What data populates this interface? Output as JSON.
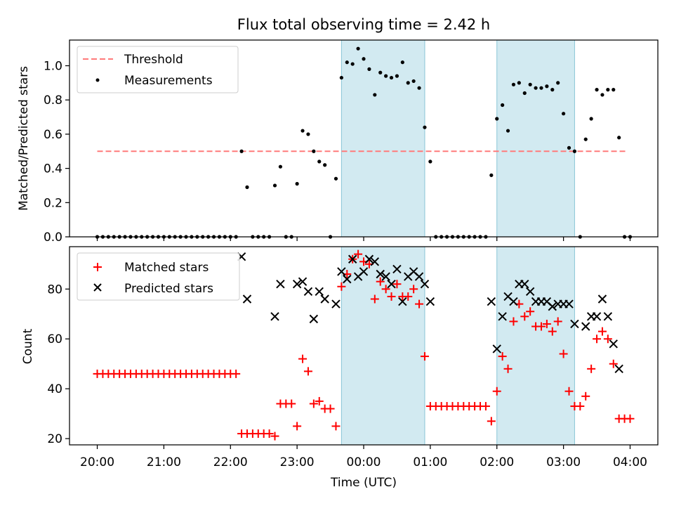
{
  "chart_data": [
    {
      "type": "scatter",
      "title": "Flux total observing time = 2.42 h",
      "xlabel": "",
      "ylabel": "Matched/Predicted stars",
      "xlim": [
        "19:35",
        "04:25"
      ],
      "ylim": [
        0,
        1.15
      ],
      "yticks": [
        "0.0",
        "0.2",
        "0.4",
        "0.6",
        "0.8",
        "1.0"
      ],
      "shaded_intervals": [
        [
          "23:40",
          "00:55"
        ],
        [
          "02:00",
          "03:10"
        ]
      ],
      "legend": {
        "placement": "top-left",
        "entries": [
          "Threshold",
          "Measurements"
        ]
      },
      "series": [
        {
          "name": "Threshold",
          "style": "dashed-line",
          "color": "#ff7a7a",
          "points": [
            [
              "20:00",
              0.5
            ],
            [
              "03:56",
              0.5
            ]
          ]
        },
        {
          "name": "Measurements",
          "style": "dot",
          "color": "#000000",
          "points": [
            [
              "20:00",
              0
            ],
            [
              "20:05",
              0
            ],
            [
              "20:10",
              0
            ],
            [
              "20:15",
              0
            ],
            [
              "20:20",
              0
            ],
            [
              "20:25",
              0
            ],
            [
              "20:30",
              0
            ],
            [
              "20:35",
              0
            ],
            [
              "20:40",
              0
            ],
            [
              "20:45",
              0
            ],
            [
              "20:50",
              0
            ],
            [
              "20:55",
              0
            ],
            [
              "21:00",
              0
            ],
            [
              "21:05",
              0
            ],
            [
              "21:10",
              0
            ],
            [
              "21:15",
              0
            ],
            [
              "21:20",
              0
            ],
            [
              "21:25",
              0
            ],
            [
              "21:30",
              0
            ],
            [
              "21:35",
              0
            ],
            [
              "21:40",
              0
            ],
            [
              "21:45",
              0
            ],
            [
              "21:50",
              0
            ],
            [
              "21:55",
              0
            ],
            [
              "22:00",
              0
            ],
            [
              "22:05",
              0
            ],
            [
              "22:10",
              0.5
            ],
            [
              "22:15",
              0.29
            ],
            [
              "22:20",
              0
            ],
            [
              "22:25",
              0
            ],
            [
              "22:30",
              0
            ],
            [
              "22:35",
              0
            ],
            [
              "22:40",
              0.3
            ],
            [
              "22:45",
              0.41
            ],
            [
              "22:50",
              0
            ],
            [
              "22:55",
              0
            ],
            [
              "23:00",
              0.31
            ],
            [
              "23:05",
              0.62
            ],
            [
              "23:10",
              0.6
            ],
            [
              "23:15",
              0.5
            ],
            [
              "23:20",
              0.44
            ],
            [
              "23:25",
              0.42
            ],
            [
              "23:30",
              0
            ],
            [
              "23:35",
              0.34
            ],
            [
              "23:40",
              0.93
            ],
            [
              "23:45",
              1.02
            ],
            [
              "23:50",
              1.01
            ],
            [
              "23:55",
              1.1
            ],
            [
              "00:00",
              1.04
            ],
            [
              "00:05",
              0.98
            ],
            [
              "00:10",
              0.83
            ],
            [
              "00:15",
              0.96
            ],
            [
              "00:20",
              0.94
            ],
            [
              "00:25",
              0.93
            ],
            [
              "00:30",
              0.94
            ],
            [
              "00:35",
              1.02
            ],
            [
              "00:40",
              0.9
            ],
            [
              "00:45",
              0.91
            ],
            [
              "00:50",
              0.87
            ],
            [
              "00:55",
              0.64
            ],
            [
              "01:00",
              0.44
            ],
            [
              "01:05",
              0
            ],
            [
              "01:10",
              0
            ],
            [
              "01:15",
              0
            ],
            [
              "01:20",
              0
            ],
            [
              "01:25",
              0
            ],
            [
              "01:30",
              0
            ],
            [
              "01:35",
              0
            ],
            [
              "01:40",
              0
            ],
            [
              "01:45",
              0
            ],
            [
              "01:50",
              0
            ],
            [
              "01:55",
              0.36
            ],
            [
              "02:00",
              0.69
            ],
            [
              "02:05",
              0.77
            ],
            [
              "02:10",
              0.62
            ],
            [
              "02:15",
              0.89
            ],
            [
              "02:20",
              0.9
            ],
            [
              "02:25",
              0.84
            ],
            [
              "02:30",
              0.89
            ],
            [
              "02:35",
              0.87
            ],
            [
              "02:40",
              0.87
            ],
            [
              "02:45",
              0.88
            ],
            [
              "02:50",
              0.86
            ],
            [
              "02:55",
              0.9
            ],
            [
              "03:00",
              0.72
            ],
            [
              "03:05",
              0.52
            ],
            [
              "03:10",
              0.5
            ],
            [
              "03:15",
              0
            ],
            [
              "03:20",
              0.57
            ],
            [
              "03:25",
              0.69
            ],
            [
              "03:30",
              0.86
            ],
            [
              "03:35",
              0.83
            ],
            [
              "03:40",
              0.86
            ],
            [
              "03:45",
              0.86
            ],
            [
              "03:50",
              0.58
            ],
            [
              "03:55",
              0
            ],
            [
              "04:00",
              0
            ]
          ]
        }
      ]
    },
    {
      "type": "scatter",
      "title": "",
      "xlabel": "Time (UTC)",
      "ylabel": "Count",
      "xlim": [
        "19:35",
        "04:25"
      ],
      "ylim": [
        17.5,
        97
      ],
      "yticks": [
        "20",
        "40",
        "60",
        "80"
      ],
      "xticks": [
        "20:00",
        "21:00",
        "22:00",
        "23:00",
        "00:00",
        "01:00",
        "02:00",
        "03:00",
        "04:00"
      ],
      "shaded_intervals": [
        [
          "23:40",
          "00:55"
        ],
        [
          "02:00",
          "03:10"
        ]
      ],
      "legend": {
        "placement": "top-left",
        "entries": [
          "Matched stars",
          "Predicted stars"
        ]
      },
      "series": [
        {
          "name": "Matched stars",
          "marker": "plus",
          "color": "#ff0000",
          "points": [
            [
              "20:00",
              46
            ],
            [
              "20:05",
              46
            ],
            [
              "20:10",
              46
            ],
            [
              "20:15",
              46
            ],
            [
              "20:20",
              46
            ],
            [
              "20:25",
              46
            ],
            [
              "20:30",
              46
            ],
            [
              "20:35",
              46
            ],
            [
              "20:40",
              46
            ],
            [
              "20:45",
              46
            ],
            [
              "20:50",
              46
            ],
            [
              "20:55",
              46
            ],
            [
              "21:00",
              46
            ],
            [
              "21:05",
              46
            ],
            [
              "21:10",
              46
            ],
            [
              "21:15",
              46
            ],
            [
              "21:20",
              46
            ],
            [
              "21:25",
              46
            ],
            [
              "21:30",
              46
            ],
            [
              "21:35",
              46
            ],
            [
              "21:40",
              46
            ],
            [
              "21:45",
              46
            ],
            [
              "21:50",
              46
            ],
            [
              "21:55",
              46
            ],
            [
              "22:00",
              46
            ],
            [
              "22:05",
              46
            ],
            [
              "22:10",
              22
            ],
            [
              "22:15",
              22
            ],
            [
              "22:20",
              22
            ],
            [
              "22:25",
              22
            ],
            [
              "22:30",
              22
            ],
            [
              "22:35",
              22
            ],
            [
              "22:40",
              21
            ],
            [
              "22:45",
              34
            ],
            [
              "22:50",
              34
            ],
            [
              "22:55",
              34
            ],
            [
              "23:00",
              25
            ],
            [
              "23:05",
              52
            ],
            [
              "23:10",
              47
            ],
            [
              "23:15",
              34
            ],
            [
              "23:20",
              35
            ],
            [
              "23:25",
              32
            ],
            [
              "23:30",
              32
            ],
            [
              "23:35",
              25
            ],
            [
              "23:40",
              81
            ],
            [
              "23:45",
              86
            ],
            [
              "23:50",
              92
            ],
            [
              "23:55",
              94
            ],
            [
              "00:00",
              91
            ],
            [
              "00:05",
              90
            ],
            [
              "00:10",
              76
            ],
            [
              "00:15",
              83
            ],
            [
              "00:20",
              80
            ],
            [
              "00:25",
              77
            ],
            [
              "00:30",
              82
            ],
            [
              "00:35",
              77
            ],
            [
              "00:40",
              77
            ],
            [
              "00:45",
              80
            ],
            [
              "00:50",
              74
            ],
            [
              "00:55",
              53
            ],
            [
              "01:00",
              33
            ],
            [
              "01:05",
              33
            ],
            [
              "01:10",
              33
            ],
            [
              "01:15",
              33
            ],
            [
              "01:20",
              33
            ],
            [
              "01:25",
              33
            ],
            [
              "01:30",
              33
            ],
            [
              "01:35",
              33
            ],
            [
              "01:40",
              33
            ],
            [
              "01:45",
              33
            ],
            [
              "01:50",
              33
            ],
            [
              "01:55",
              27
            ],
            [
              "02:00",
              39
            ],
            [
              "02:05",
              53
            ],
            [
              "02:10",
              48
            ],
            [
              "02:15",
              67
            ],
            [
              "02:20",
              74
            ],
            [
              "02:25",
              69
            ],
            [
              "02:30",
              71
            ],
            [
              "02:35",
              65
            ],
            [
              "02:40",
              65
            ],
            [
              "02:45",
              66
            ],
            [
              "02:50",
              63
            ],
            [
              "02:55",
              67
            ],
            [
              "03:00",
              54
            ],
            [
              "03:05",
              39
            ],
            [
              "03:10",
              33
            ],
            [
              "03:15",
              33
            ],
            [
              "03:20",
              37
            ],
            [
              "03:25",
              48
            ],
            [
              "03:30",
              60
            ],
            [
              "03:35",
              63
            ],
            [
              "03:40",
              60
            ],
            [
              "03:45",
              50
            ],
            [
              "03:50",
              28
            ],
            [
              "03:55",
              28
            ],
            [
              "04:00",
              28
            ]
          ]
        },
        {
          "name": "Predicted stars",
          "marker": "x",
          "color": "#000000",
          "points": [
            [
              "22:10",
              93
            ],
            [
              "22:15",
              76
            ],
            [
              "22:40",
              69
            ],
            [
              "22:45",
              82
            ],
            [
              "23:00",
              82
            ],
            [
              "23:05",
              83
            ],
            [
              "23:10",
              79
            ],
            [
              "23:15",
              68
            ],
            [
              "23:20",
              79
            ],
            [
              "23:25",
              76
            ],
            [
              "23:35",
              74
            ],
            [
              "23:40",
              87
            ],
            [
              "23:45",
              84
            ],
            [
              "23:50",
              92
            ],
            [
              "23:55",
              85
            ],
            [
              "00:00",
              87
            ],
            [
              "00:05",
              92
            ],
            [
              "00:10",
              91
            ],
            [
              "00:15",
              86
            ],
            [
              "00:20",
              85
            ],
            [
              "00:25",
              82
            ],
            [
              "00:30",
              88
            ],
            [
              "00:35",
              75
            ],
            [
              "00:40",
              85
            ],
            [
              "00:45",
              87
            ],
            [
              "00:50",
              85
            ],
            [
              "00:55",
              82
            ],
            [
              "01:00",
              75
            ],
            [
              "01:55",
              75
            ],
            [
              "02:00",
              56
            ],
            [
              "02:05",
              69
            ],
            [
              "02:10",
              77
            ],
            [
              "02:15",
              75
            ],
            [
              "02:20",
              82
            ],
            [
              "02:25",
              82
            ],
            [
              "02:30",
              79
            ],
            [
              "02:35",
              75
            ],
            [
              "02:40",
              75
            ],
            [
              "02:45",
              75
            ],
            [
              "02:50",
              73
            ],
            [
              "02:55",
              74
            ],
            [
              "03:00",
              74
            ],
            [
              "03:05",
              74
            ],
            [
              "03:10",
              66
            ],
            [
              "03:20",
              65
            ],
            [
              "03:25",
              69
            ],
            [
              "03:30",
              69
            ],
            [
              "03:35",
              76
            ],
            [
              "03:40",
              69
            ],
            [
              "03:45",
              58
            ],
            [
              "03:50",
              48
            ]
          ]
        }
      ]
    }
  ]
}
